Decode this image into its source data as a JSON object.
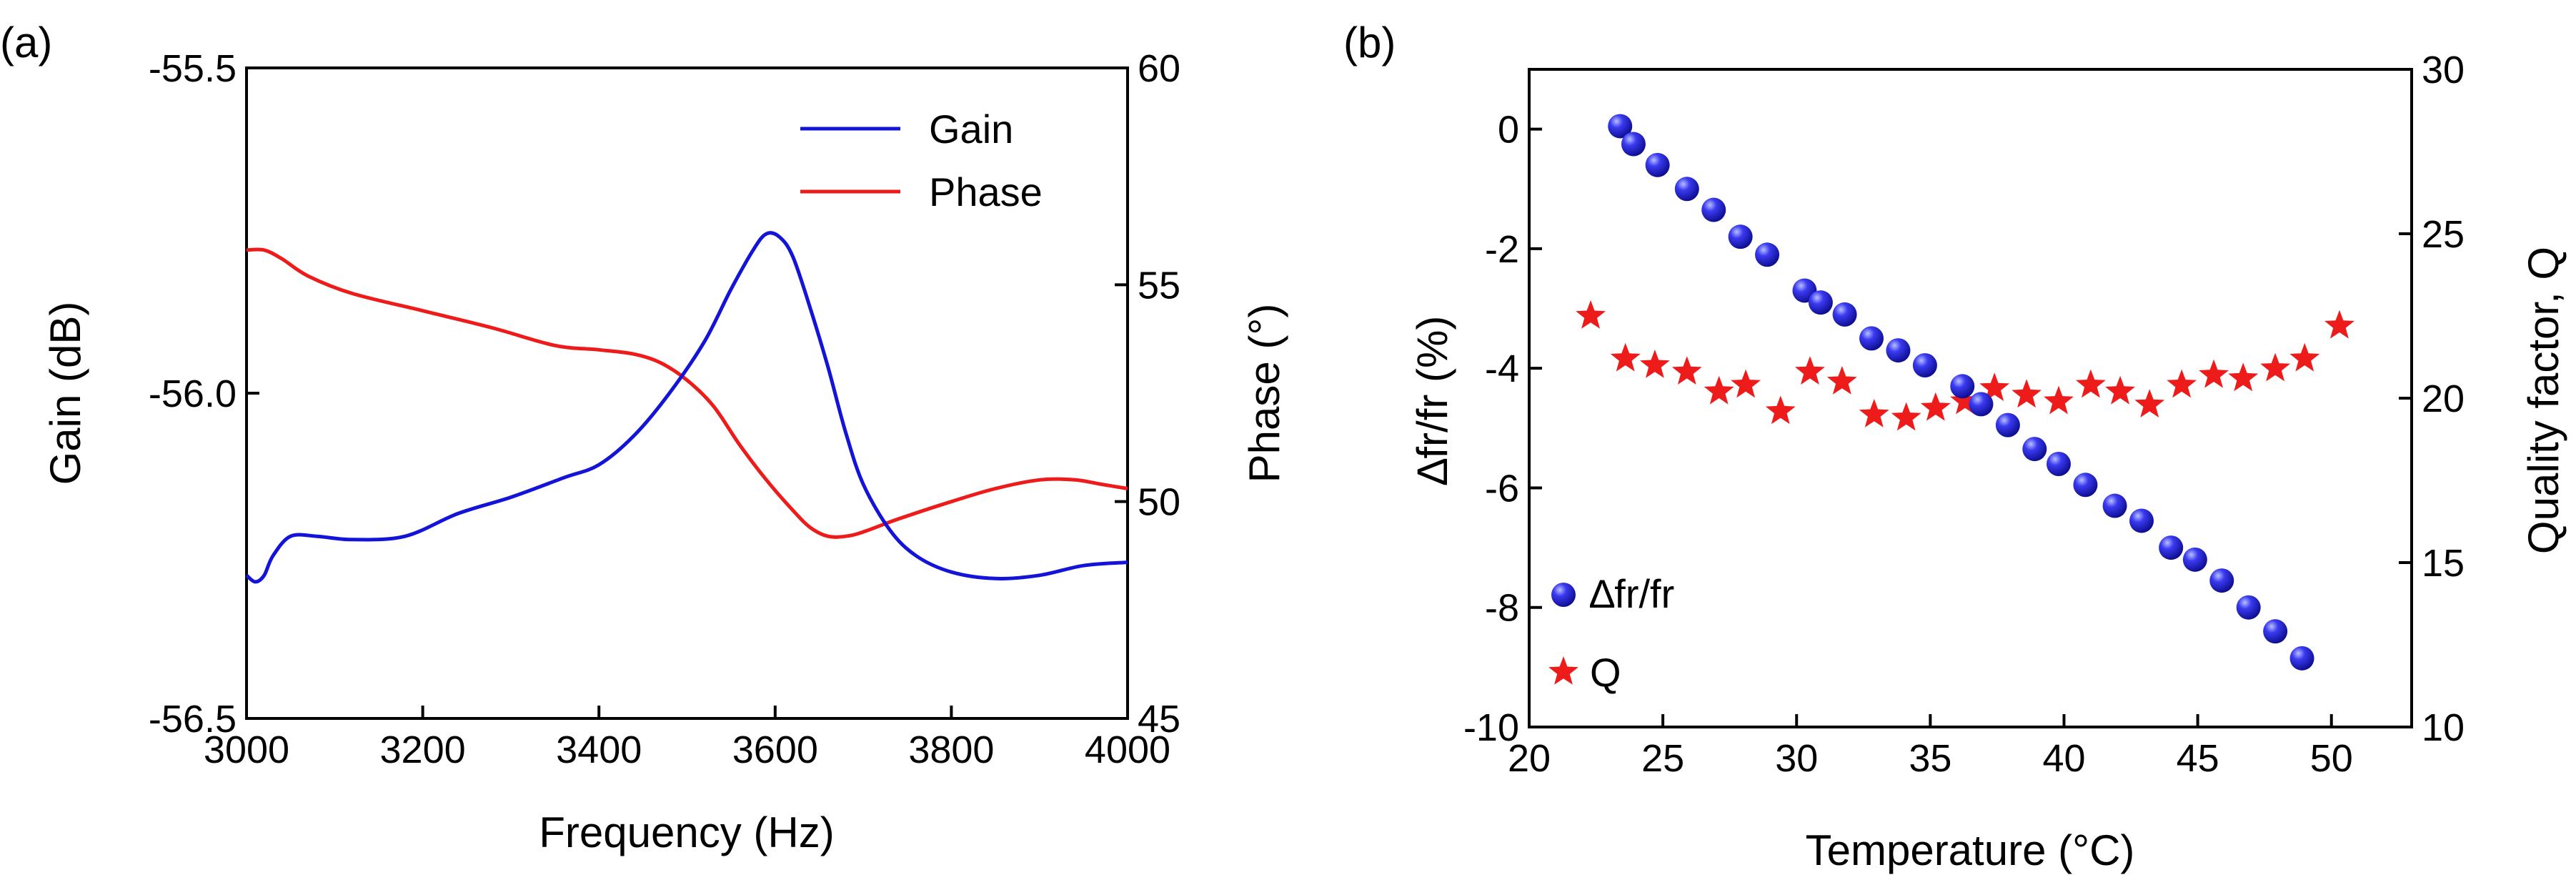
{
  "chart_data": [
    {
      "panel_label": "(a)",
      "type": "line",
      "xlabel": "Frequency (Hz)",
      "ylabel_left": "Gain (dB)",
      "ylabel_right": "Phase (°)",
      "xlim": [
        3000,
        4000
      ],
      "ylim_left": [
        -56.5,
        -55.5
      ],
      "ylim_right": [
        45,
        60
      ],
      "xticks": [
        3000,
        3200,
        3400,
        3600,
        3800,
        4000
      ],
      "xtick_labels": [
        "3000",
        "3200",
        "3400",
        "3600",
        "3800",
        "4000"
      ],
      "yticks_left": [
        -56.5,
        -56.0,
        -55.5
      ],
      "ytick_labels_left": [
        "-56.5",
        "-56.0",
        "-55.5"
      ],
      "yticks_right": [
        45,
        50,
        55,
        60
      ],
      "ytick_labels_right": [
        "45",
        "50",
        "55",
        "60"
      ],
      "legend_position": "top-right",
      "series": [
        {
          "name": "Gain",
          "axis": "left",
          "color": "#1414d8",
          "x": [
            3000,
            3010,
            3020,
            3030,
            3050,
            3080,
            3120,
            3180,
            3240,
            3300,
            3360,
            3400,
            3440,
            3480,
            3520,
            3550,
            3575,
            3590,
            3605,
            3620,
            3640,
            3660,
            3680,
            3700,
            3730,
            3760,
            3800,
            3850,
            3900,
            3950,
            4000
          ],
          "y": [
            -56.28,
            -56.29,
            -56.28,
            -56.25,
            -56.22,
            -56.22,
            -56.225,
            -56.22,
            -56.185,
            -56.16,
            -56.13,
            -56.11,
            -56.065,
            -56.0,
            -55.92,
            -55.84,
            -55.78,
            -55.755,
            -55.76,
            -55.79,
            -55.87,
            -55.96,
            -56.06,
            -56.14,
            -56.21,
            -56.25,
            -56.275,
            -56.285,
            -56.28,
            -56.265,
            -56.26
          ]
        },
        {
          "name": "Phase",
          "axis": "right",
          "color": "#ee1b1b",
          "x": [
            3000,
            3020,
            3040,
            3070,
            3120,
            3200,
            3280,
            3350,
            3400,
            3440,
            3470,
            3500,
            3530,
            3560,
            3590,
            3620,
            3640,
            3660,
            3680,
            3700,
            3740,
            3800,
            3850,
            3900,
            3940,
            3970,
            4000
          ],
          "y": [
            55.8,
            55.8,
            55.6,
            55.2,
            54.8,
            54.4,
            54.0,
            53.6,
            53.5,
            53.4,
            53.2,
            52.8,
            52.2,
            51.3,
            50.5,
            49.8,
            49.4,
            49.2,
            49.2,
            49.3,
            49.6,
            50.0,
            50.3,
            50.5,
            50.5,
            50.4,
            50.3
          ]
        }
      ]
    },
    {
      "panel_label": "(b)",
      "type": "scatter",
      "xlabel": "Temperature (°C)",
      "ylabel_left": "∆fr/fr (%)",
      "ylabel_right": "Quality factor, Q",
      "xlim": [
        20,
        53
      ],
      "ylim_left": [
        -10,
        1
      ],
      "ylim_right": [
        10,
        30
      ],
      "xticks": [
        20,
        25,
        30,
        35,
        40,
        45,
        50
      ],
      "xtick_labels": [
        "20",
        "25",
        "30",
        "35",
        "40",
        "45",
        "50"
      ],
      "yticks_left": [
        -10,
        -8,
        -6,
        -4,
        -2,
        0
      ],
      "ytick_labels_left": [
        "-10",
        "-8",
        "-6",
        "-4",
        "-2",
        "0"
      ],
      "yticks_right": [
        10,
        15,
        20,
        25,
        30
      ],
      "ytick_labels_right": [
        "10",
        "15",
        "20",
        "25",
        "30"
      ],
      "legend_position": "bottom-left",
      "series": [
        {
          "name": "∆fr/fr",
          "axis": "left",
          "marker": "sphere",
          "color": "#1414e0",
          "x": [
            23.4,
            23.9,
            24.8,
            25.9,
            26.9,
            27.9,
            28.9,
            30.3,
            30.9,
            31.8,
            32.8,
            33.8,
            34.8,
            36.2,
            36.9,
            37.9,
            38.9,
            39.8,
            40.8,
            41.9,
            42.9,
            44.0,
            44.9,
            45.9,
            46.9,
            47.9,
            48.9
          ],
          "y": [
            0.05,
            -0.25,
            -0.6,
            -1.0,
            -1.35,
            -1.8,
            -2.1,
            -2.7,
            -2.9,
            -3.1,
            -3.5,
            -3.7,
            -3.95,
            -4.3,
            -4.6,
            -4.95,
            -5.35,
            -5.6,
            -5.95,
            -6.3,
            -6.55,
            -7.0,
            -7.2,
            -7.55,
            -8.0,
            -8.4,
            -8.85
          ]
        },
        {
          "name": "Q",
          "axis": "right",
          "marker": "star",
          "color": "#ee1b1b",
          "x": [
            22.3,
            23.6,
            24.7,
            25.9,
            27.1,
            28.1,
            29.4,
            30.5,
            31.7,
            32.9,
            34.1,
            35.2,
            36.3,
            37.4,
            38.6,
            39.8,
            41.0,
            42.1,
            43.2,
            44.4,
            45.6,
            46.7,
            47.9,
            49.0,
            50.3
          ],
          "y": [
            22.5,
            21.2,
            21.0,
            20.8,
            20.2,
            20.4,
            19.6,
            20.8,
            20.5,
            19.5,
            19.4,
            19.7,
            19.9,
            20.3,
            20.1,
            19.9,
            20.4,
            20.2,
            19.8,
            20.4,
            20.7,
            20.6,
            20.9,
            21.2,
            22.2
          ]
        }
      ]
    }
  ]
}
